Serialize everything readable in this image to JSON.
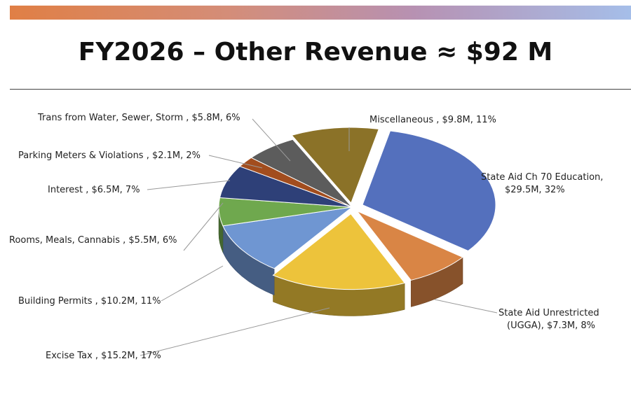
{
  "title": "FY2026 – Other Revenue ≈ $92 M",
  "chart_data": {
    "type": "pie",
    "title": "FY2026 – Other Revenue ≈ $92 M",
    "unit": "$M",
    "slices": [
      {
        "name": "State Aid Ch 70 Education",
        "value": 29.5,
        "pct": 32,
        "color": "#5470bd",
        "label": [
          "State Aid Ch 70 Education,",
          "$29.5M, 32%"
        ]
      },
      {
        "name": "State Aid Unrestricted (UGGA)",
        "value": 7.3,
        "pct": 8,
        "color": "#d98545",
        "label": [
          "State Aid Unrestricted",
          "(UGGA), $7.3M, 8%"
        ]
      },
      {
        "name": "Excise Tax",
        "value": 15.2,
        "pct": 17,
        "color": "#edc33b",
        "label": [
          "Excise Tax , $15.2M, 17%"
        ]
      },
      {
        "name": "Building Permits",
        "value": 10.2,
        "pct": 11,
        "color": "#6f96d2",
        "label": [
          "Building Permits , $10.2M, 11%"
        ]
      },
      {
        "name": "Rooms, Meals, Cannabis",
        "value": 5.5,
        "pct": 6,
        "color": "#6fa84e",
        "label": [
          "Rooms, Meals, Cannabis , $5.5M, 6%"
        ]
      },
      {
        "name": "Interest",
        "value": 6.5,
        "pct": 7,
        "color": "#2e4078",
        "label": [
          "Interest , $6.5M, 7%"
        ]
      },
      {
        "name": "Parking Meters & Violations",
        "value": 2.1,
        "pct": 2,
        "color": "#a24d1e",
        "label": [
          "Parking Meters & Violations , $2.1M, 2%"
        ]
      },
      {
        "name": "Trans from Water, Sewer, Storm",
        "value": 5.8,
        "pct": 6,
        "color": "#5c5c5c",
        "label": [
          "Trans from Water, Sewer, Storm , $5.8M, 6%"
        ]
      },
      {
        "name": "Miscellaneous",
        "value": 9.8,
        "pct": 11,
        "color": "#8b7228",
        "label": [
          "Miscellaneous , $9.8M, 11%"
        ]
      }
    ]
  }
}
